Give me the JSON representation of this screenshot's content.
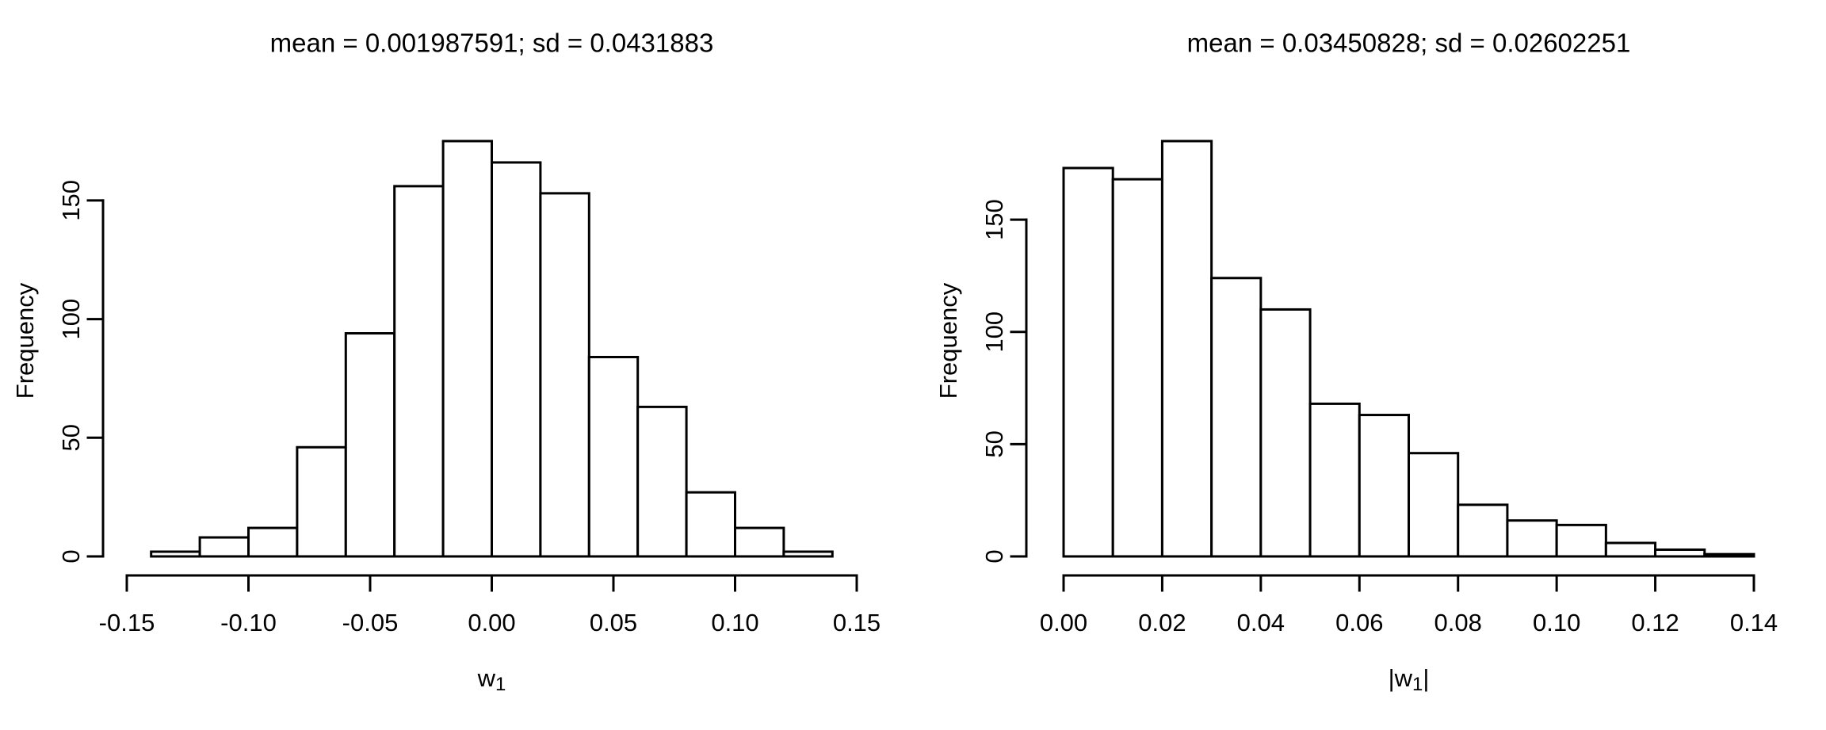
{
  "figure": {
    "background": "#ffffff",
    "line_color": "#000000",
    "bar_fill": "#ffffff"
  },
  "chart_data": [
    {
      "type": "bar",
      "chart_kind": "histogram",
      "title": "mean = 0.001987591; sd = 0.0431883",
      "xlabel": {
        "prefix": "",
        "base": "w",
        "subscript": "1",
        "suffix": ""
      },
      "ylabel": "Frequency",
      "bin_start": -0.14,
      "bin_width": 0.02,
      "counts": [
        2,
        8,
        12,
        46,
        94,
        156,
        175,
        166,
        153,
        84,
        63,
        27,
        12,
        2
      ],
      "x_ticks": [
        -0.15,
        -0.1,
        -0.05,
        0,
        0.05,
        0.1,
        0.15
      ],
      "x_tick_labels": [
        "-0.15",
        "-0.10",
        "-0.05",
        "0.00",
        "0.05",
        "0.10",
        "0.15"
      ],
      "y_ticks": [
        0,
        50,
        100,
        150
      ],
      "y_tick_labels": [
        "0",
        "50",
        "100",
        "150"
      ],
      "xlim": [
        -0.15,
        0.15
      ],
      "ylim": [
        0,
        175
      ],
      "grid": false,
      "legend": false
    },
    {
      "type": "bar",
      "chart_kind": "histogram",
      "title": "mean = 0.03450828; sd = 0.02602251",
      "xlabel": {
        "prefix": "|",
        "base": "w",
        "subscript": "1",
        "suffix": "|"
      },
      "ylabel": "Frequency",
      "bin_start": 0,
      "bin_width": 0.01,
      "counts": [
        173,
        168,
        185,
        124,
        110,
        68,
        63,
        46,
        23,
        16,
        14,
        6,
        3,
        1
      ],
      "x_ticks": [
        0,
        0.02,
        0.04,
        0.06,
        0.08,
        0.1,
        0.12,
        0.14
      ],
      "x_tick_labels": [
        "0.00",
        "0.02",
        "0.04",
        "0.06",
        "0.08",
        "0.10",
        "0.12",
        "0.14"
      ],
      "y_ticks": [
        0,
        50,
        100,
        150
      ],
      "y_tick_labels": [
        "0",
        "50",
        "100",
        "150"
      ],
      "xlim": [
        0,
        0.14
      ],
      "ylim": [
        0,
        185
      ],
      "grid": false,
      "legend": false
    }
  ]
}
